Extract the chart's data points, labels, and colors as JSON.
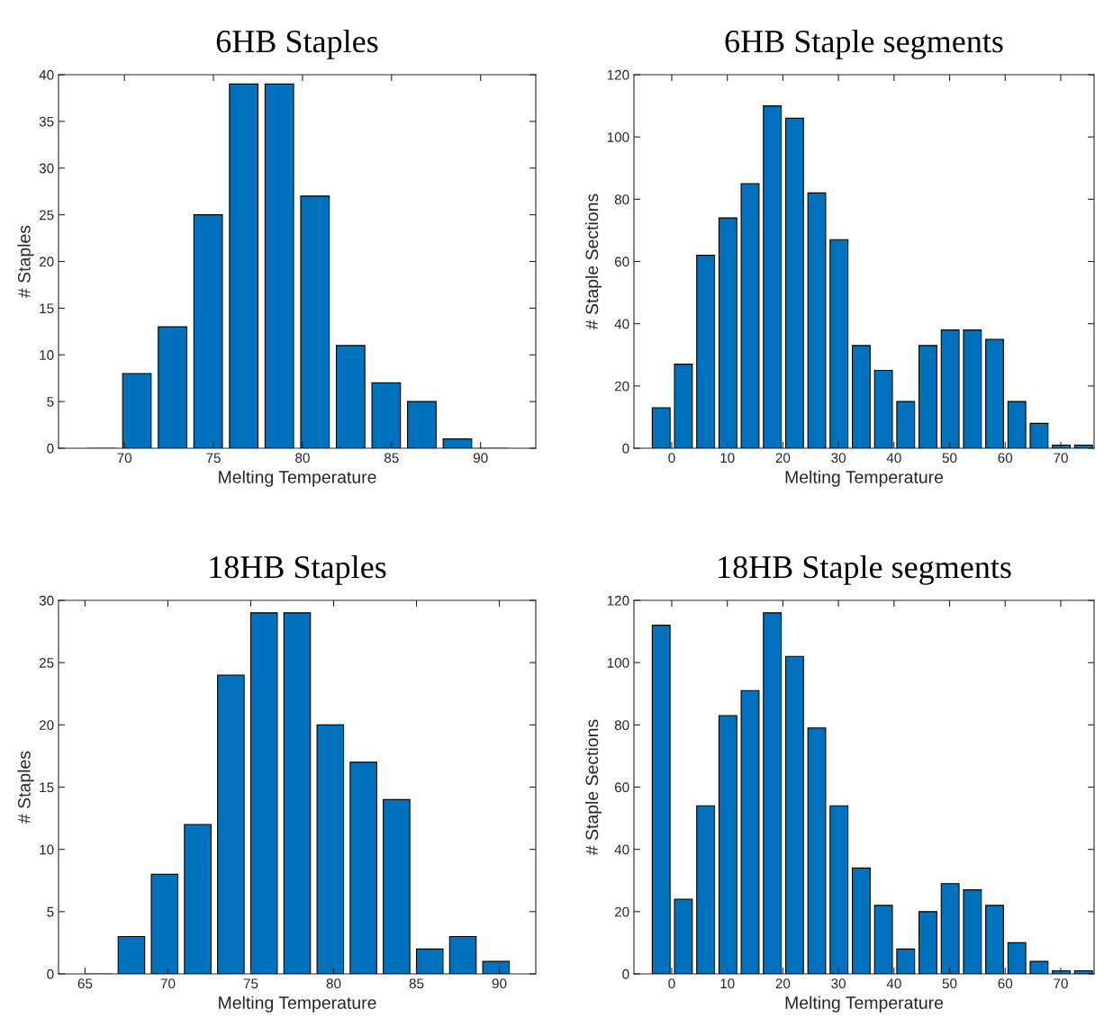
{
  "chart_data": [
    {
      "type": "bar",
      "title": "6HB Staples",
      "xlabel": "Melting Temperature",
      "ylabel": "# Staples",
      "color": "#0072bd",
      "x": [
        68.7,
        70.7,
        72.7,
        74.7,
        76.7,
        78.7,
        80.7,
        82.7,
        84.7,
        86.7,
        88.7,
        90.7
      ],
      "values": [
        0,
        8,
        13,
        25,
        39,
        39,
        27,
        11,
        7,
        5,
        1,
        0
      ],
      "xlim": [
        66.3,
        93.1
      ],
      "xticks": [
        70,
        75,
        80,
        85,
        90
      ],
      "ylim": [
        0,
        40
      ],
      "yticks": [
        0,
        5,
        10,
        15,
        20,
        25,
        30,
        35,
        40
      ],
      "grid": false
    },
    {
      "type": "bar",
      "title": "6HB Staple segments",
      "xlabel": "Melting Temperature",
      "ylabel": "# Staple Sections",
      "color": "#0072bd",
      "x": [
        -1.9,
        2.1,
        6.1,
        10.1,
        14.1,
        18.1,
        22.1,
        26.1,
        30.1,
        34.1,
        38.1,
        42.1,
        46.1,
        50.1,
        54.1,
        58.1,
        62.1,
        66.1,
        70.1,
        74.1
      ],
      "values": [
        13,
        27,
        62,
        74,
        85,
        110,
        106,
        82,
        67,
        33,
        25,
        15,
        33,
        38,
        38,
        35,
        15,
        8,
        1,
        1
      ],
      "xlim": [
        -6.8,
        76
      ],
      "xticks": [
        0,
        10,
        20,
        30,
        40,
        50,
        60,
        70
      ],
      "ylim": [
        0,
        120
      ],
      "yticks": [
        0,
        20,
        40,
        60,
        80,
        100,
        120
      ],
      "grid": false
    },
    {
      "type": "bar",
      "title": "18HB Staples",
      "xlabel": "Melting Temperature",
      "ylabel": "# Staples",
      "color": "#0072bd",
      "x": [
        65.8,
        67.8,
        69.8,
        71.8,
        73.8,
        75.8,
        77.8,
        79.8,
        81.8,
        83.8,
        85.8,
        87.8,
        89.8
      ],
      "values": [
        0,
        3,
        8,
        12,
        24,
        29,
        29,
        20,
        17,
        14,
        2,
        3,
        1
      ],
      "xlim": [
        63.4,
        92.2
      ],
      "xticks": [
        65,
        70,
        75,
        80,
        85,
        90
      ],
      "ylim": [
        0,
        30
      ],
      "yticks": [
        0,
        5,
        10,
        15,
        20,
        25,
        30
      ],
      "grid": false
    },
    {
      "type": "bar",
      "title": "18HB Staple segments",
      "xlabel": "Melting Temperature",
      "ylabel": "# Staple Sections",
      "color": "#0072bd",
      "x": [
        -1.9,
        2.1,
        6.1,
        10.1,
        14.1,
        18.1,
        22.1,
        26.1,
        30.1,
        34.1,
        38.1,
        42.1,
        46.1,
        50.1,
        54.1,
        58.1,
        62.1,
        66.1,
        70.1,
        74.1
      ],
      "values": [
        112,
        24,
        54,
        83,
        91,
        116,
        102,
        79,
        54,
        34,
        22,
        8,
        20,
        29,
        27,
        22,
        10,
        4,
        1,
        1
      ],
      "xlim": [
        -6.8,
        76
      ],
      "xticks": [
        0,
        10,
        20,
        30,
        40,
        50,
        60,
        70
      ],
      "ylim": [
        0,
        120
      ],
      "yticks": [
        0,
        20,
        40,
        60,
        80,
        100,
        120
      ],
      "grid": false
    }
  ]
}
